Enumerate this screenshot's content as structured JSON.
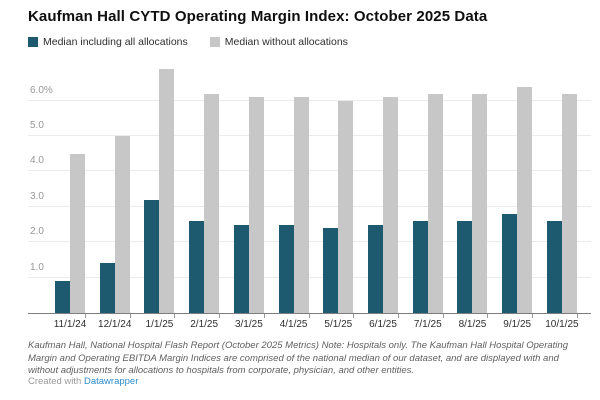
{
  "title": "Kaufman Hall CYTD Operating Margin Index: October 2025 Data",
  "legend": [
    {
      "label": "Median including all allocations",
      "color": "#1d5a70"
    },
    {
      "label": "Median without allocations",
      "color": "#c7c7c7"
    }
  ],
  "chart_data": {
    "type": "bar",
    "title": "Kaufman Hall CYTD Operating Margin Index: October 2025 Data",
    "categories": [
      "11/1/24",
      "12/1/24",
      "1/1/25",
      "2/1/25",
      "3/1/25",
      "4/1/25",
      "5/1/25",
      "6/1/25",
      "7/1/25",
      "8/1/25",
      "9/1/25",
      "10/1/25"
    ],
    "series": [
      {
        "name": "Median including all allocations",
        "color": "#1d5a70",
        "values": [
          0.9,
          1.4,
          3.2,
          2.6,
          2.5,
          2.5,
          2.4,
          2.5,
          2.6,
          2.6,
          2.8,
          2.6
        ]
      },
      {
        "name": "Median without allocations",
        "color": "#c7c7c7",
        "values": [
          4.5,
          5.0,
          6.9,
          6.2,
          6.1,
          6.1,
          6.0,
          6.1,
          6.2,
          6.2,
          6.4,
          6.2
        ]
      }
    ],
    "xlabel": "",
    "ylabel": "",
    "ylim": [
      0,
      7.15
    ],
    "y_ticks": [
      {
        "value": 1,
        "label": "1.0"
      },
      {
        "value": 2,
        "label": "2.0"
      },
      {
        "value": 3,
        "label": "3.0"
      },
      {
        "value": 4,
        "label": "4.0"
      },
      {
        "value": 5,
        "label": "5.0"
      },
      {
        "value": 6,
        "label": "6.0%"
      }
    ],
    "grid": true,
    "legend_position": "top-left"
  },
  "footnote": "Kaufman Hall, National Hospital Flash Report (October 2025 Metrics) Note: Hospitals only. The Kaufman Hall Hospital Operating Margin and Operating EBITDA Margin Indices are comprised of the national median of our dataset, and are displayed with and without adjustments for allocations to hospitals from corporate, physician, and other entities.",
  "attribution": {
    "prefix": "Created with ",
    "link_label": "Datawrapper"
  }
}
